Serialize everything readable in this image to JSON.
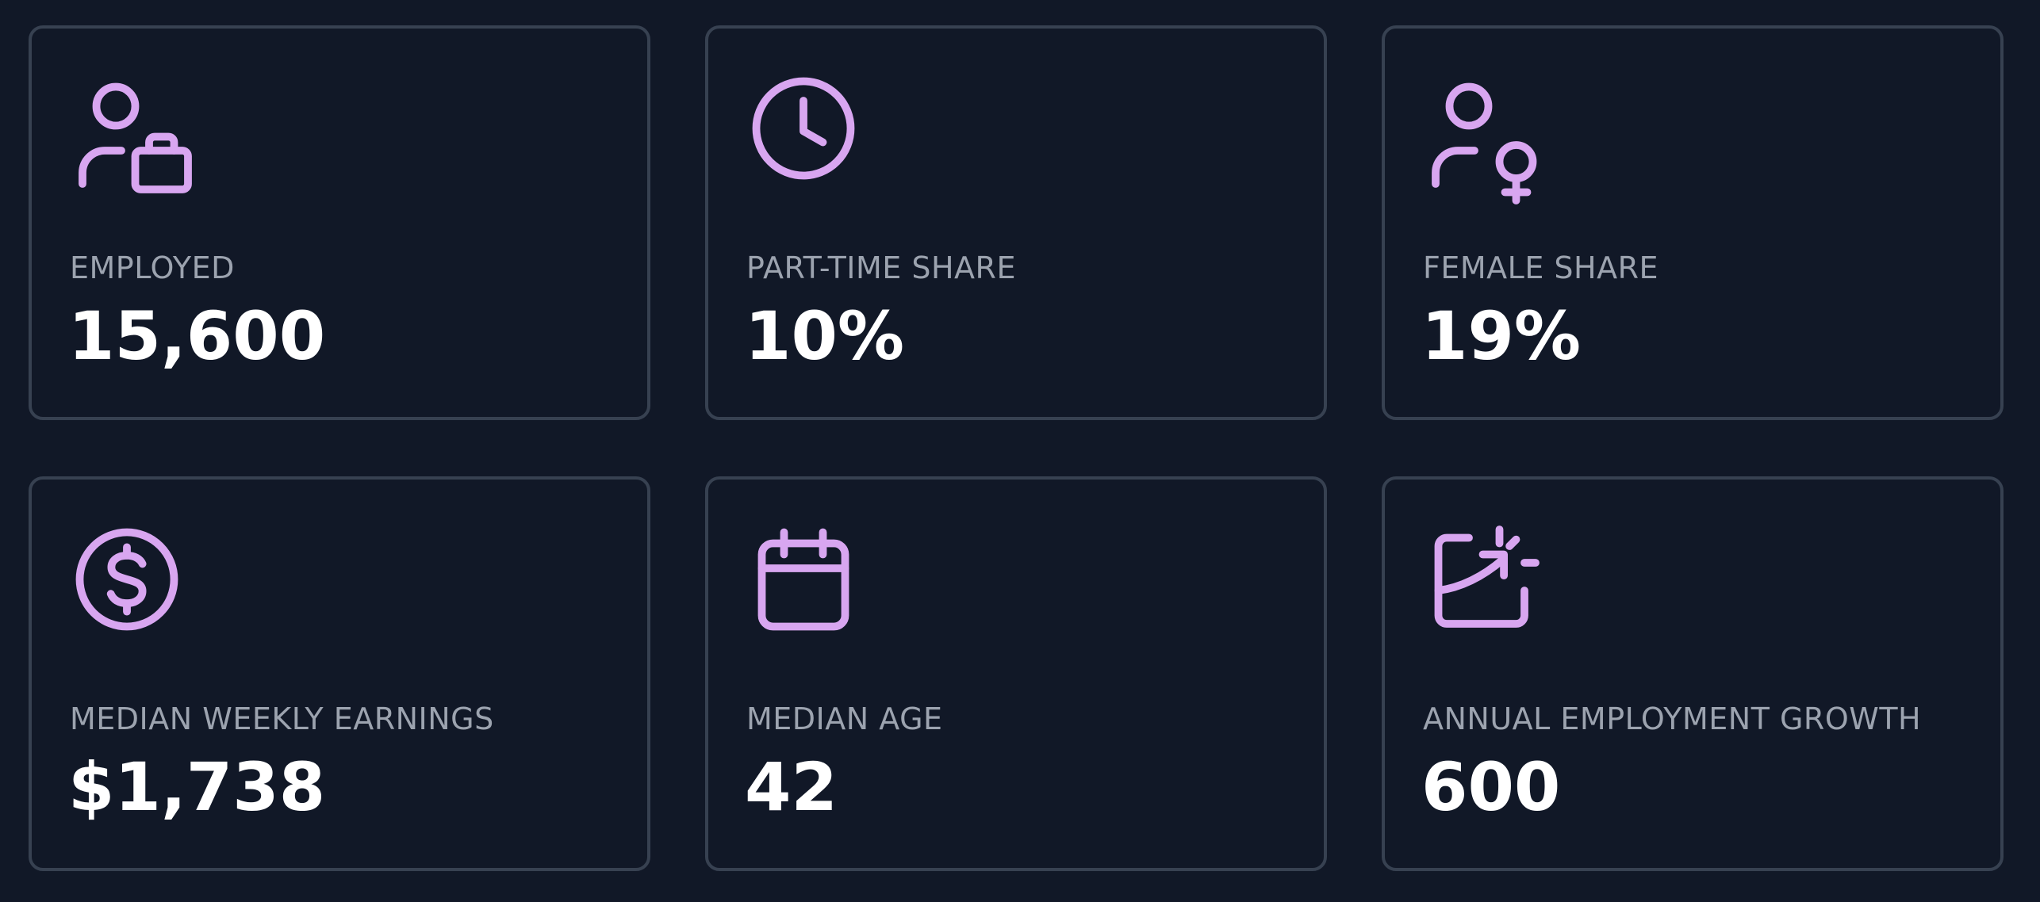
{
  "theme": {
    "background": "#111827",
    "card_border": "#374151",
    "icon_color": "#d8a6f0",
    "label_color": "#9ca3af",
    "value_color": "#ffffff"
  },
  "stats": [
    {
      "icon": "person-briefcase-icon",
      "label": "EMPLOYED",
      "value": "15,600"
    },
    {
      "icon": "clock-icon",
      "label": "PART-TIME SHARE",
      "value": "10%"
    },
    {
      "icon": "person-female-icon",
      "label": "FEMALE SHARE",
      "value": "19%"
    },
    {
      "icon": "dollar-circle-icon",
      "label": "MEDIAN WEEKLY EARNINGS",
      "value": "$1,738"
    },
    {
      "icon": "calendar-icon",
      "label": "MEDIAN AGE",
      "value": "42"
    },
    {
      "icon": "growth-chart-icon",
      "label": "ANNUAL EMPLOYMENT GROWTH",
      "value": "600"
    }
  ]
}
